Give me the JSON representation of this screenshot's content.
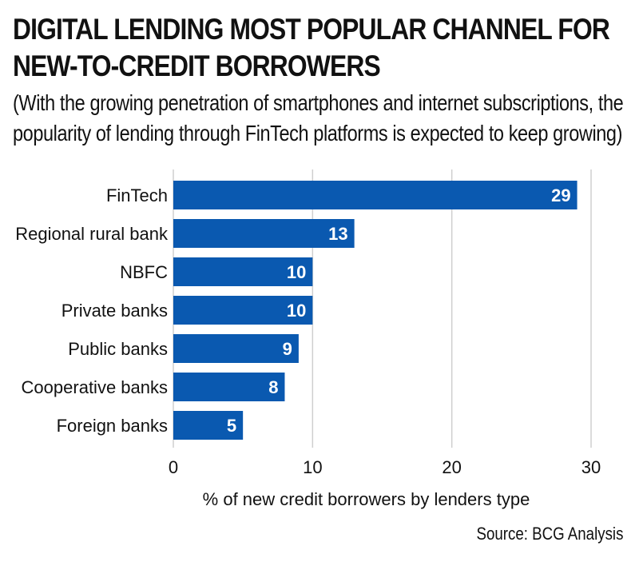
{
  "title_lines": [
    "DIGITAL LENDING MOST POPULAR CHANNEL FOR",
    "NEW-TO-CREDIT BORROWERS"
  ],
  "subtitle_lines": [
    "(With the growing penetration of smartphones and internet subscriptions, the",
    "popularity of lending through FinTech platforms is expected to keep growing)"
  ],
  "source": "Source: BCG Analysis",
  "colors": {
    "bar": "#0a59b0",
    "grid": "#cfcfcf",
    "text": "#111111",
    "label": "#ffffff"
  },
  "chart_data": {
    "type": "bar",
    "orientation": "horizontal",
    "title": "DIGITAL LENDING MOST POPULAR CHANNEL FOR NEW-TO-CREDIT BORROWERS",
    "categories": [
      "FinTech",
      "Regional rural bank",
      "NBFC",
      "Private banks",
      "Public banks",
      "Cooperative banks",
      "Foreign banks"
    ],
    "values": [
      29,
      13,
      10,
      10,
      9,
      8,
      5
    ],
    "xlabel": "% of new credit borrowers by lenders type",
    "ylabel": "",
    "xlim": [
      0,
      30
    ],
    "xticks": [
      0,
      10,
      20,
      30
    ],
    "grid": "vertical",
    "data_labels": true
  }
}
